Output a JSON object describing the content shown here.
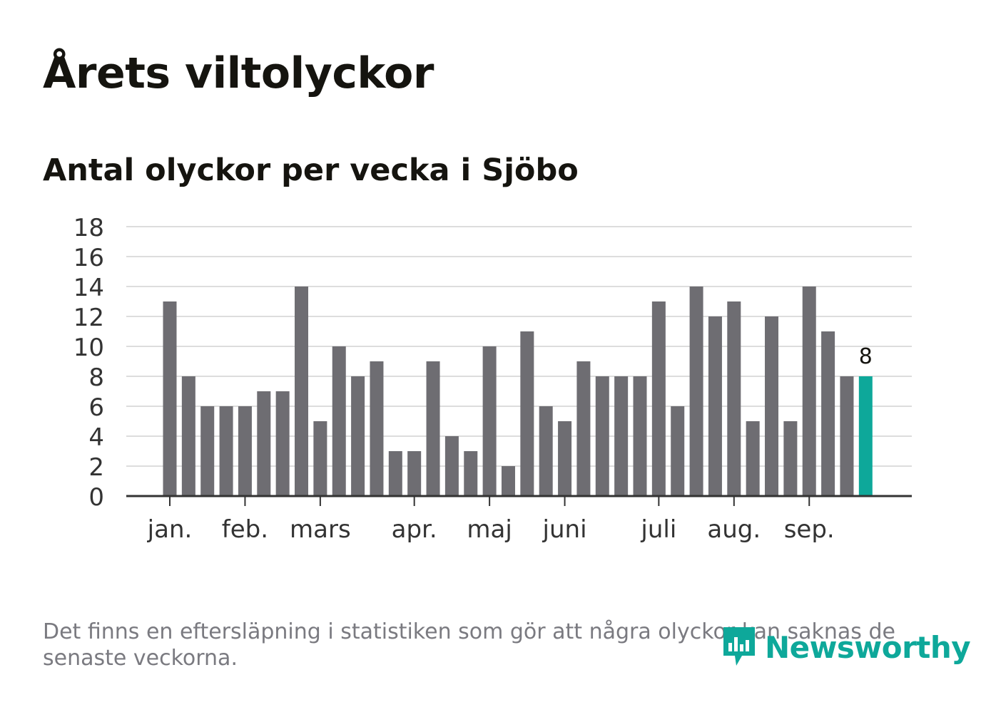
{
  "title": "Årets viltolyckor",
  "subtitle": "Antal olyckor per vecka i Sjöbo",
  "footnote": "Det finns en eftersläpning i statistiken som gör att några olyckor kan saknas de senaste veckorna.",
  "logo_text": "Newsworthy",
  "colors": {
    "bar": "#6e6d72",
    "highlight": "#0ea89a",
    "grid": "#dddddd",
    "axis": "#333333",
    "text": "#333333"
  },
  "chart_data": {
    "type": "bar",
    "title": "Antal olyckor per vecka i Sjöbo",
    "xlabel": "",
    "ylabel": "",
    "ylim": [
      0,
      18
    ],
    "yticks": [
      0,
      2,
      4,
      6,
      8,
      10,
      12,
      14,
      16,
      18
    ],
    "values": [
      13,
      8,
      6,
      6,
      6,
      7,
      7,
      14,
      5,
      10,
      8,
      9,
      3,
      3,
      9,
      4,
      3,
      10,
      2,
      11,
      6,
      5,
      9,
      8,
      8,
      8,
      13,
      6,
      14,
      12,
      13,
      5,
      12,
      5,
      14,
      11,
      8,
      8
    ],
    "highlight_index": 37,
    "highlight_label": "8",
    "month_labels": [
      {
        "label": "jan.",
        "week": 0
      },
      {
        "label": "feb.",
        "week": 4
      },
      {
        "label": "mars",
        "week": 8
      },
      {
        "label": "apr.",
        "week": 13
      },
      {
        "label": "maj",
        "week": 17
      },
      {
        "label": "juni",
        "week": 21
      },
      {
        "label": "juli",
        "week": 26
      },
      {
        "label": "aug.",
        "week": 30
      },
      {
        "label": "sep.",
        "week": 34
      }
    ],
    "grid": true
  }
}
